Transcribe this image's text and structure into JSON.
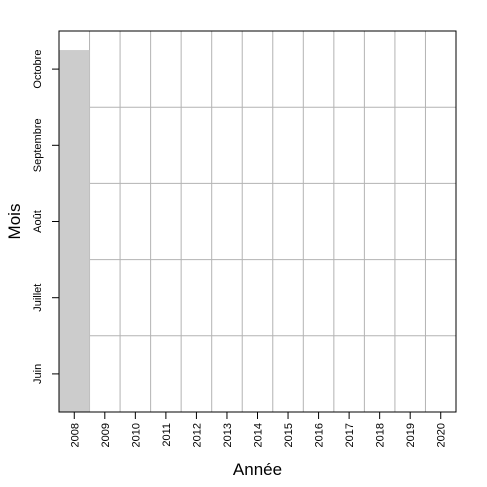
{
  "chart_data": {
    "type": "bar",
    "xlabel": "Année",
    "ylabel": "Mois",
    "categories": [
      "2008",
      "2009",
      "2010",
      "2011",
      "2012",
      "2013",
      "2014",
      "2015",
      "2016",
      "2017",
      "2018",
      "2019",
      "2020"
    ],
    "y_ticks": [
      {
        "label": "Juin",
        "value": 1
      },
      {
        "label": "Juillet",
        "value": 2
      },
      {
        "label": "Août",
        "value": 3
      },
      {
        "label": "Septembre",
        "value": 4
      },
      {
        "label": "Octobre",
        "value": 5
      }
    ],
    "y_gridlines": [
      1.5,
      2.5,
      3.5,
      4.5
    ],
    "ylim": [
      0.5,
      5.5
    ],
    "series": [
      {
        "values": [
          5.25,
          null,
          null,
          null,
          null,
          null,
          null,
          null,
          null,
          null,
          null,
          null,
          null
        ]
      }
    ],
    "grid": true,
    "colors": {
      "bar": "#cccccc",
      "grid": "#b3b3b3",
      "axis": "#000000"
    }
  }
}
